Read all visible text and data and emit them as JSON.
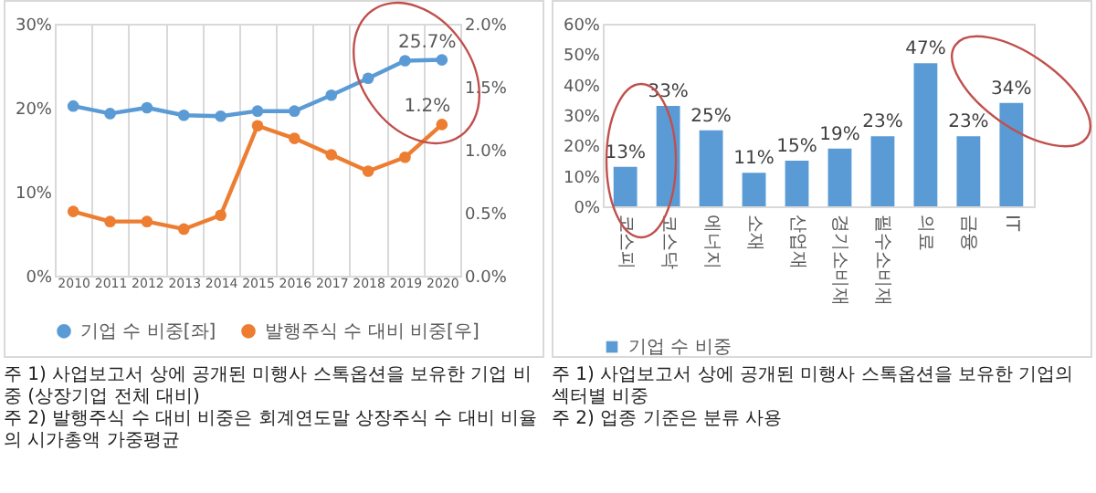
{
  "chart_data": [
    {
      "type": "line",
      "categories": [
        "2010",
        "2011",
        "2012",
        "2013",
        "2014",
        "2015",
        "2016",
        "2017",
        "2018",
        "2019",
        "2020"
      ],
      "series": [
        {
          "name": "기업 수 비중[좌]",
          "color": "#5b9bd5",
          "values": [
            20.2,
            19.3,
            20.0,
            19.1,
            19.0,
            19.6,
            19.6,
            21.5,
            23.5,
            25.6,
            25.7
          ],
          "value_labels": [
            null,
            null,
            null,
            null,
            null,
            null,
            null,
            null,
            null,
            null,
            "25.7%"
          ]
        },
        {
          "name": "발행주식 수 대비 비중[우]",
          "color": "#ed7d31",
          "axis": "y2",
          "values": [
            0.51,
            0.43,
            0.43,
            0.37,
            0.48,
            1.19,
            1.09,
            0.96,
            0.83,
            0.94,
            1.2
          ],
          "value_labels": [
            null,
            null,
            null,
            null,
            null,
            null,
            null,
            null,
            null,
            null,
            "1.2%"
          ]
        }
      ],
      "ylim": [
        0,
        30
      ],
      "yticks": [
        {
          "value": 0,
          "label": "0%"
        },
        {
          "value": 10,
          "label": "10%"
        },
        {
          "value": 20,
          "label": "20%"
        },
        {
          "value": 30,
          "label": "30%"
        }
      ],
      "y2lim": [
        0,
        2
      ],
      "y2ticks": [
        {
          "value": 0,
          "label": "0.0%"
        },
        {
          "value": 0.5,
          "label": "0.5%"
        },
        {
          "value": 1,
          "label": "1.0%"
        },
        {
          "value": 1.5,
          "label": "1.5%"
        },
        {
          "value": 2,
          "label": "2.0%"
        }
      ],
      "grid": "x",
      "marker": "circle",
      "legend": "bottom",
      "annotations": [
        "주 1) 사업보고서 상에 공개된 미행사 스톡옵션을 보유한 기업 비중 (상장기업 전체 대비)",
        "주 2) 발행주식 수 대비 비중은 회계연도말 상장주식 수 대비 비율의 시가총액 가중평균"
      ]
    },
    {
      "type": "bar",
      "categories": [
        "코스피",
        "코스닥",
        "에너지",
        "소재",
        "산업재",
        "경기소비재",
        "필수소비재",
        "의료",
        "금융",
        "IT"
      ],
      "series": [
        {
          "name": "기업 수 비중",
          "color": "#5b9bd5",
          "values": [
            13,
            33,
            25,
            11,
            15,
            19,
            23,
            47,
            23,
            34
          ],
          "value_labels": [
            "13%",
            "33%",
            "25%",
            "11%",
            "15%",
            "19%",
            "23%",
            "47%",
            "23%",
            "34%"
          ]
        }
      ],
      "ylim": [
        0,
        60
      ],
      "yticks": [
        {
          "value": 0,
          "label": "0%"
        },
        {
          "value": 10,
          "label": "10%"
        },
        {
          "value": 20,
          "label": "20%"
        },
        {
          "value": 30,
          "label": "30%"
        },
        {
          "value": 40,
          "label": "40%"
        },
        {
          "value": 50,
          "label": "50%"
        },
        {
          "value": 60,
          "label": "60%"
        }
      ],
      "legend": "bottom",
      "annotations": [
        "주 1) 사업보고서 상에 공개된 미행사 스톡옵션을 보유한 기업의 섹터별 비중",
        "주 2) 업종 기준은 분류 사용"
      ]
    }
  ]
}
